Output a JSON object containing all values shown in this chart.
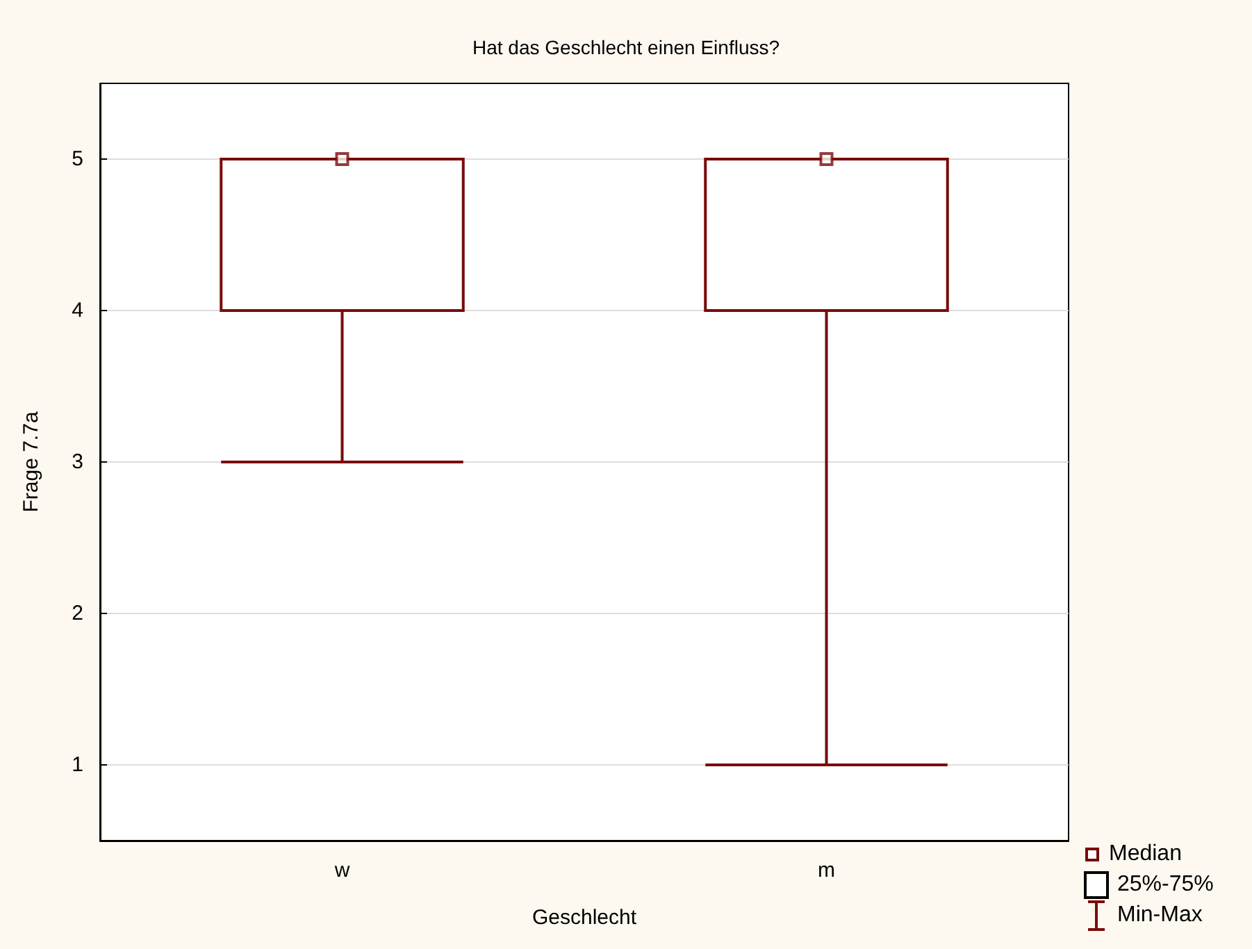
{
  "chart_data": {
    "type": "box",
    "title": "Hat das Geschlecht einen Einfluss?",
    "xlabel": "Geschlecht",
    "ylabel": "Frage 7.7a",
    "categories": [
      "w",
      "m"
    ],
    "boxes": [
      {
        "low": 3,
        "q1": 4,
        "median": 5,
        "q3": 5,
        "high": 5
      },
      {
        "low": 1,
        "q1": 4,
        "median": 5,
        "q3": 5,
        "high": 5
      }
    ],
    "series": [
      {
        "type": "scatter",
        "name": "Median",
        "color": "#7a0a0a",
        "x": [
          "w",
          "m"
        ],
        "values": [
          5,
          5
        ]
      }
    ],
    "color": "#7a0a0a",
    "marker": "square",
    "ylim": [
      0.5,
      5.5
    ],
    "yticks": [
      1,
      2,
      3,
      4,
      5
    ],
    "grid": "y",
    "annotations": [
      "25%-75%",
      "Min-Max"
    ]
  }
}
